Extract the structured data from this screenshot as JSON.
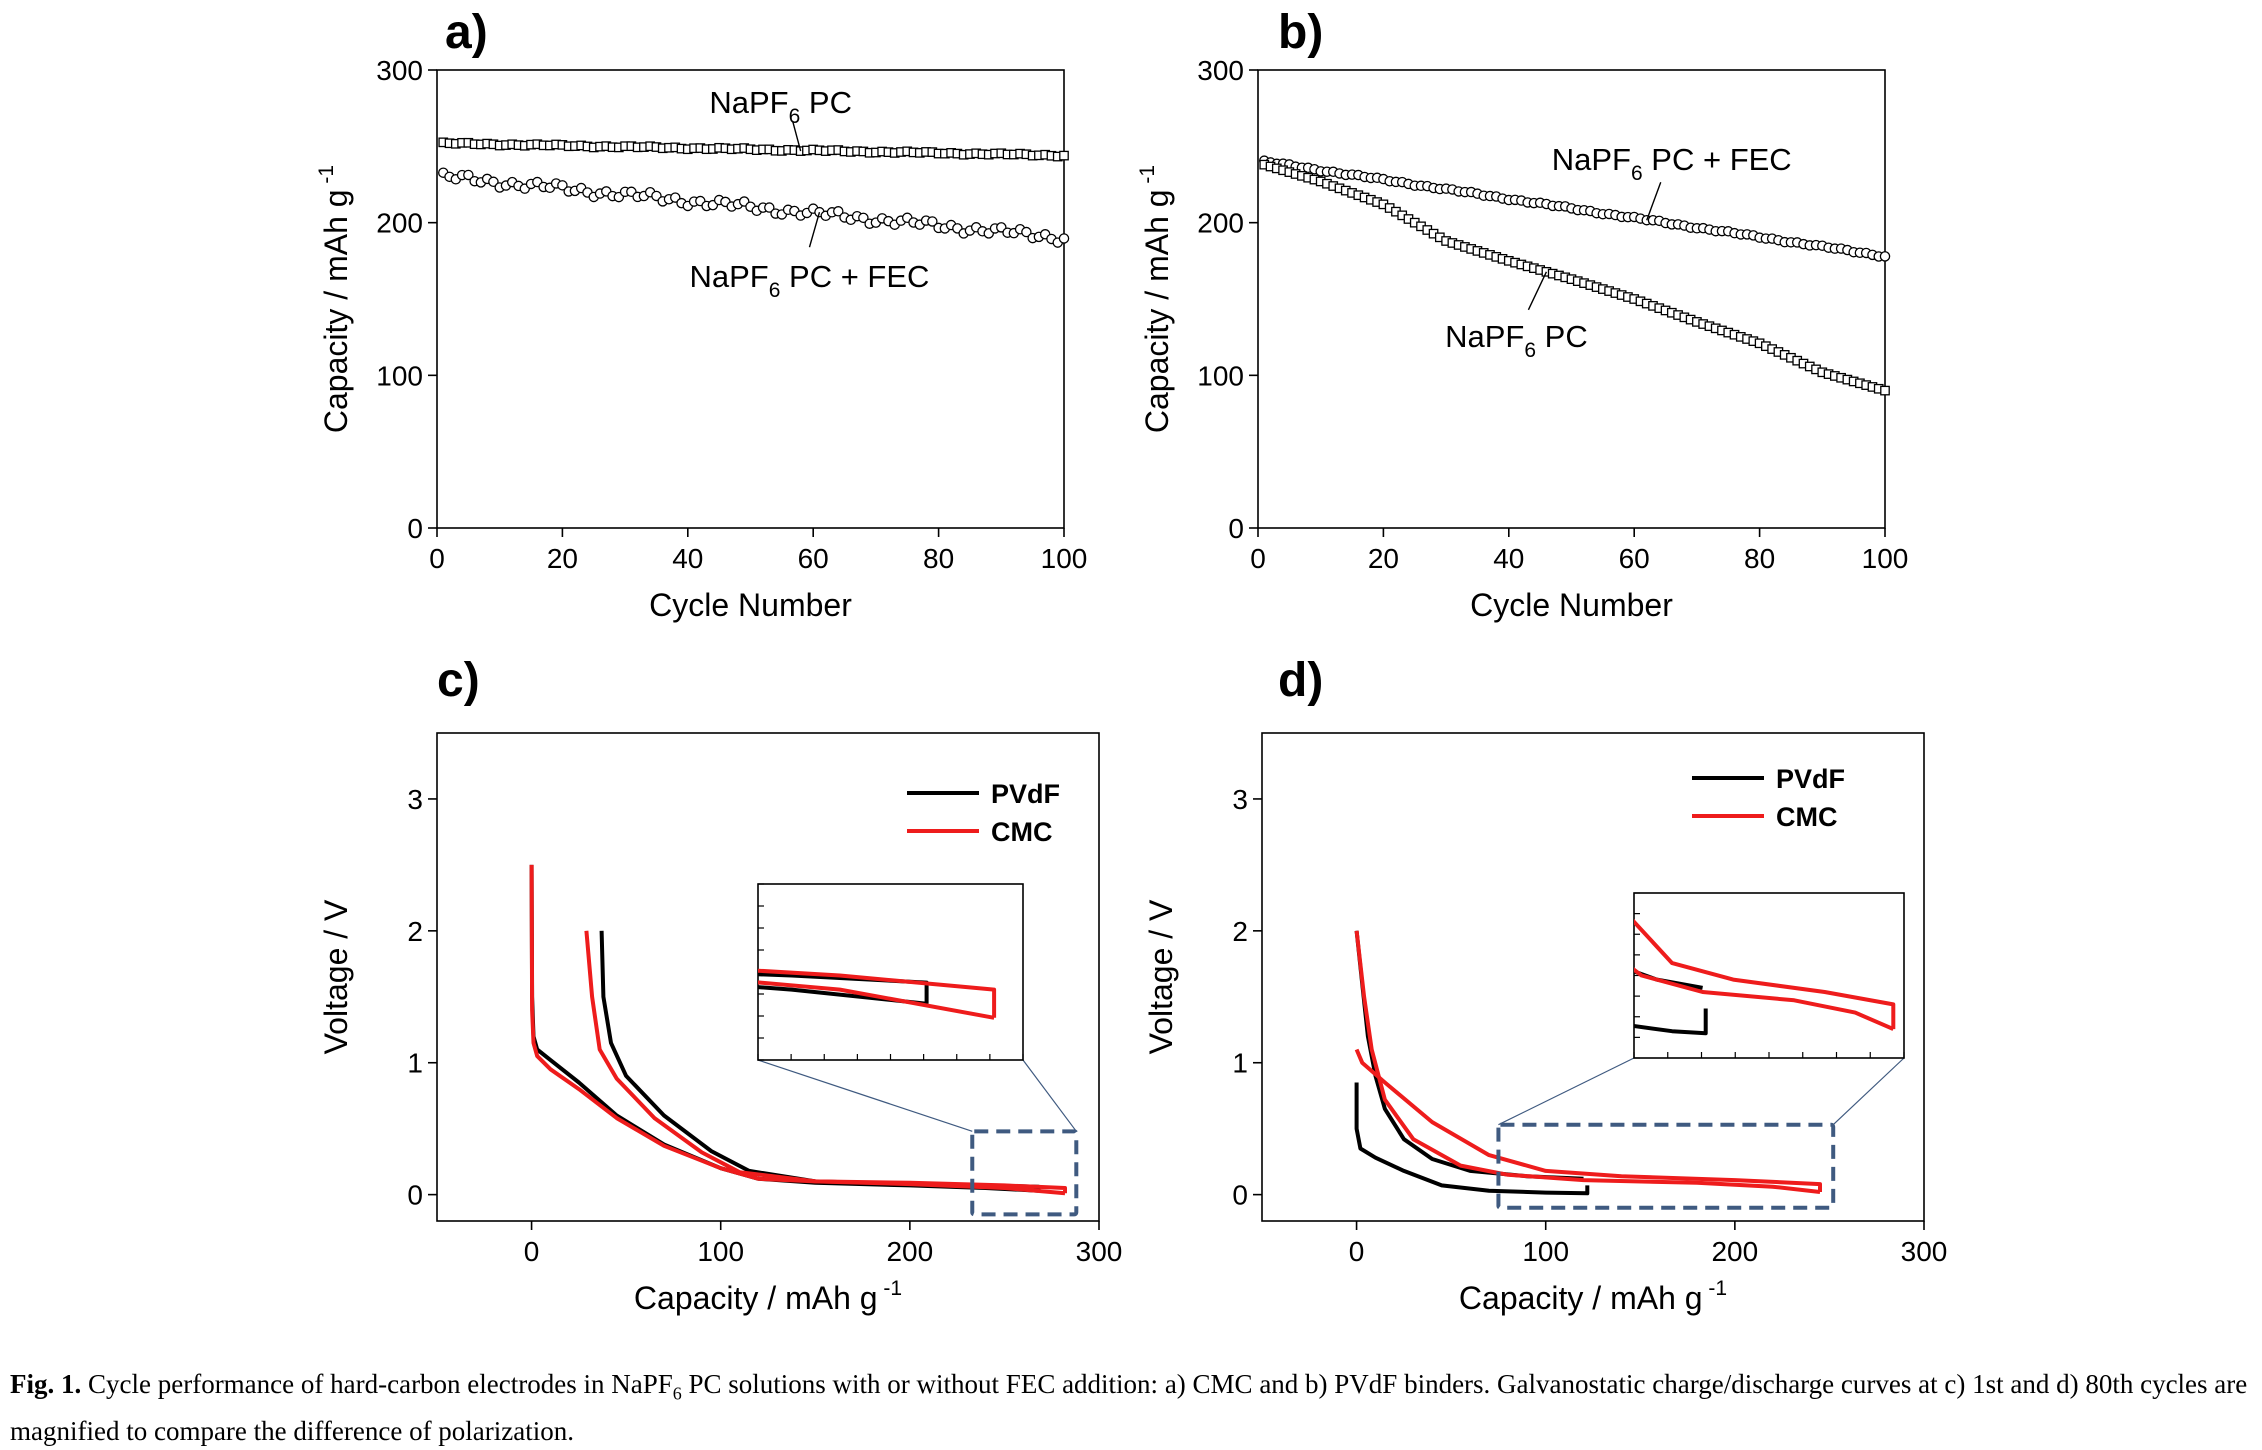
{
  "chart_data": [
    {
      "panel": "a)",
      "type": "scatter",
      "xlabel": "Cycle Number",
      "ylabel": "Capacity / mAh g",
      "ylabel_sup": "-1",
      "xlim": [
        0,
        100
      ],
      "ylim": [
        0,
        300
      ],
      "xticks": [
        0,
        20,
        40,
        60,
        80,
        100
      ],
      "yticks": [
        0,
        100,
        200,
        300
      ],
      "series": [
        {
          "name": "NaPF6 PC",
          "marker": "square",
          "start": 252,
          "end": 244,
          "noise": 0.5
        },
        {
          "name": "NaPF6 PC + FEC",
          "marker": "circle",
          "start": 230,
          "end": 190,
          "noise": 2.2
        }
      ],
      "annotations": [
        {
          "base": "NaPF",
          "sub": "6",
          "rest": " PC",
          "series": 0,
          "at_x": 58
        },
        {
          "base": "NaPF",
          "sub": "6",
          "rest": " PC + FEC",
          "series": 1,
          "at_x": 61
        }
      ]
    },
    {
      "panel": "b)",
      "type": "scatter",
      "xlabel": "Cycle Number",
      "ylabel": "Capacity / mAh g",
      "ylabel_sup": "-1",
      "xlim": [
        0,
        100
      ],
      "ylim": [
        0,
        300
      ],
      "xticks": [
        0,
        20,
        40,
        60,
        80,
        100
      ],
      "yticks": [
        0,
        100,
        200,
        300
      ],
      "series": [
        {
          "name": "NaPF6 PC + FEC",
          "marker": "circle",
          "start": 240,
          "end": 178,
          "noise": 0.5
        },
        {
          "name": "NaPF6 PC",
          "marker": "square",
          "knots": [
            [
              1,
              238
            ],
            [
              10,
              227
            ],
            [
              20,
              212
            ],
            [
              30,
              188
            ],
            [
              40,
              175
            ],
            [
              50,
              163
            ],
            [
              60,
              150
            ],
            [
              70,
              135
            ],
            [
              80,
              121
            ],
            [
              90,
              102
            ],
            [
              100,
              90
            ]
          ]
        }
      ],
      "annotations": [
        {
          "base": "NaPF",
          "sub": "6",
          "rest": " PC + FEC",
          "series": 0,
          "at_x": 62
        },
        {
          "base": "NaPF",
          "sub": "6",
          "rest": " PC",
          "series": 1,
          "at_x": 46
        }
      ]
    },
    {
      "panel": "c)",
      "type": "line",
      "xlabel": "Capacity / mAh g",
      "xlabel_sup": "-1",
      "ylabel": "Voltage / V",
      "xlim": [
        -50,
        300
      ],
      "ylim": [
        -0.2,
        3.5
      ],
      "xticks": [
        0,
        100,
        200,
        300
      ],
      "yticks": [
        0,
        1,
        2,
        3
      ],
      "legend": [
        {
          "name": "PVdF",
          "color": "#000000"
        },
        {
          "name": "CMC",
          "color": "#ee1c1c"
        }
      ],
      "series": [
        {
          "name": "PVdF discharge",
          "color": "#000000",
          "points": [
            [
              0,
              2.5
            ],
            [
              0.3,
              1.5
            ],
            [
              1,
              1.2
            ],
            [
              3,
              1.1
            ],
            [
              10,
              1.02
            ],
            [
              25,
              0.85
            ],
            [
              45,
              0.6
            ],
            [
              70,
              0.38
            ],
            [
              100,
              0.2
            ],
            [
              120,
              0.12
            ],
            [
              150,
              0.09
            ],
            [
              200,
              0.07
            ],
            [
              240,
              0.05
            ],
            [
              268,
              0.03
            ]
          ]
        },
        {
          "name": "PVdF charge",
          "color": "#000000",
          "points": [
            [
              268,
              0.03
            ],
            [
              268,
              0.06
            ],
            [
              240,
              0.07
            ],
            [
              200,
              0.08
            ],
            [
              150,
              0.1
            ],
            [
              115,
              0.18
            ],
            [
              95,
              0.33
            ],
            [
              70,
              0.6
            ],
            [
              50,
              0.9
            ],
            [
              42,
              1.15
            ],
            [
              38,
              1.5
            ],
            [
              37,
              2.0
            ]
          ]
        },
        {
          "name": "CMC discharge",
          "color": "#ee1c1c",
          "points": [
            [
              0,
              2.5
            ],
            [
              0.3,
              1.4
            ],
            [
              1,
              1.15
            ],
            [
              3,
              1.05
            ],
            [
              10,
              0.95
            ],
            [
              25,
              0.8
            ],
            [
              45,
              0.58
            ],
            [
              70,
              0.37
            ],
            [
              100,
              0.2
            ],
            [
              120,
              0.12
            ],
            [
              150,
              0.1
            ],
            [
              200,
              0.08
            ],
            [
              250,
              0.05
            ],
            [
              282,
              0.01
            ]
          ]
        },
        {
          "name": "CMC charge",
          "color": "#ee1c1c",
          "points": [
            [
              282,
              0.01
            ],
            [
              282,
              0.05
            ],
            [
              250,
              0.07
            ],
            [
              200,
              0.09
            ],
            [
              150,
              0.1
            ],
            [
              110,
              0.17
            ],
            [
              90,
              0.32
            ],
            [
              65,
              0.58
            ],
            [
              45,
              0.88
            ],
            [
              36,
              1.1
            ],
            [
              32,
              1.5
            ],
            [
              29,
              2.0
            ]
          ]
        }
      ],
      "zoom_box": {
        "x": [
          233,
          288
        ],
        "y": [
          -0.15,
          0.48
        ]
      }
    },
    {
      "panel": "d)",
      "type": "line",
      "xlabel": "Capacity / mAh g",
      "xlabel_sup": "-1",
      "ylabel": "Voltage / V",
      "xlim": [
        -50,
        300
      ],
      "ylim": [
        -0.2,
        3.5
      ],
      "xticks": [
        0,
        100,
        200,
        300
      ],
      "yticks": [
        0,
        1,
        2,
        3
      ],
      "legend": [
        {
          "name": "PVdF",
          "color": "#000000"
        },
        {
          "name": "CMC",
          "color": "#ee1c1c"
        }
      ],
      "series": [
        {
          "name": "PVdF discharge",
          "color": "#000000",
          "points": [
            [
              0,
              2.0
            ],
            [
              3,
              1.6
            ],
            [
              6,
              1.2
            ],
            [
              10,
              0.9
            ],
            [
              15,
              0.65
            ],
            [
              25,
              0.42
            ],
            [
              40,
              0.27
            ],
            [
              60,
              0.18
            ],
            [
              90,
              0.14
            ],
            [
              120,
              0.12
            ]
          ]
        },
        {
          "name": "PVdF charge",
          "color": "#000000",
          "points": [
            [
              0,
              0.85
            ],
            [
              0,
              0.5
            ],
            [
              2,
              0.35
            ],
            [
              10,
              0.28
            ],
            [
              25,
              0.18
            ],
            [
              45,
              0.07
            ],
            [
              70,
              0.03
            ],
            [
              100,
              0.015
            ],
            [
              122,
              0.01
            ],
            [
              122,
              0.07
            ]
          ]
        },
        {
          "name": "CMC discharge",
          "color": "#ee1c1c",
          "points": [
            [
              0,
              2.0
            ],
            [
              4,
              1.5
            ],
            [
              8,
              1.1
            ],
            [
              15,
              0.72
            ],
            [
              30,
              0.42
            ],
            [
              55,
              0.22
            ],
            [
              80,
              0.15
            ],
            [
              120,
              0.11
            ],
            [
              180,
              0.09
            ],
            [
              220,
              0.06
            ],
            [
              245,
              0.02
            ]
          ]
        },
        {
          "name": "CMC charge",
          "color": "#ee1c1c",
          "points": [
            [
              245,
              0.02
            ],
            [
              245,
              0.08
            ],
            [
              200,
              0.11
            ],
            [
              140,
              0.14
            ],
            [
              100,
              0.18
            ],
            [
              70,
              0.3
            ],
            [
              40,
              0.55
            ],
            [
              15,
              0.85
            ],
            [
              3,
              1.0
            ],
            [
              0,
              1.1
            ]
          ]
        }
      ],
      "zoom_box": {
        "x": [
          75,
          252
        ],
        "y": [
          -0.1,
          0.53
        ]
      }
    }
  ],
  "caption": {
    "label": "Fig. 1.",
    "text_before_sub": " Cycle performance of hard-carbon electrodes in NaPF",
    "sub": "6",
    "text_after_sub": " PC solutions with or without FEC addition: a) CMC and b) PVdF binders. Galvanostatic charge/discharge curves at c) 1st and d) 80th cycles are magnified to compare the difference of polarization."
  }
}
